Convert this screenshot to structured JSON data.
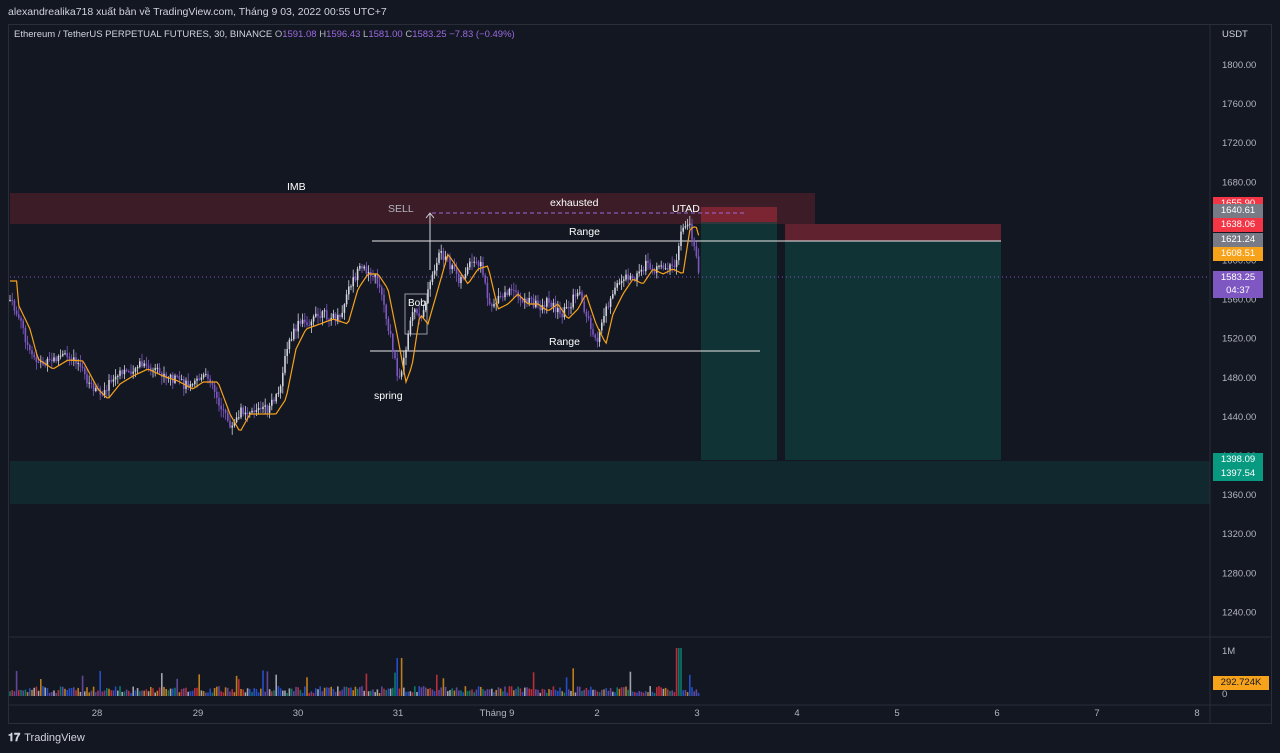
{
  "header": {
    "publisher_line": "alexandrealika718 xuất bản về TradingView.com, Tháng 9 03, 2022 00:55 UTC+7"
  },
  "legend": {
    "symbol": "Ethereum / TetherUS PERPETUAL FUTURES, 30, BINANCE",
    "o_label": "O",
    "o": "1591.08",
    "h_label": "H",
    "h": "1596.43",
    "l_label": "L",
    "l": "1581.00",
    "c_label": "C",
    "c": "1583.25",
    "change": "−7.83 (−0.49%)"
  },
  "price_axis": {
    "currency": "USDT",
    "ticks": [
      "1800.00",
      "1760.00",
      "1720.00",
      "1680.00",
      "1640.00",
      "1600.00",
      "1560.00",
      "1520.00",
      "1480.00",
      "1440.00",
      "1400.00",
      "1360.00",
      "1320.00",
      "1280.00",
      "1240.00"
    ],
    "tags": [
      {
        "label": "1655.90",
        "color": "#f23645"
      },
      {
        "label": "1640.61",
        "color": "#787b86"
      },
      {
        "label": "1638.06",
        "color": "#f23645"
      },
      {
        "label": "1621.24",
        "color": "#787b86"
      },
      {
        "label": "1608.51",
        "color": "#f7a21b"
      },
      {
        "label": "1583.25",
        "color": "#7e57c2"
      },
      {
        "label": "04:37",
        "color": "#7e57c2"
      },
      {
        "label": "1398.09",
        "color": "#089981"
      },
      {
        "label": "1397.54",
        "color": "#089981"
      }
    ]
  },
  "volume_axis": {
    "ticks": [
      "1M",
      "0"
    ],
    "current": "292.724K",
    "current_color": "#f7a21b"
  },
  "time_axis": [
    "28",
    "29",
    "30",
    "31",
    "Tháng 9",
    "2",
    "3",
    "4",
    "5",
    "6",
    "7",
    "8"
  ],
  "annotations": {
    "imb": "IMB",
    "sell": "SELL",
    "exhausted": "exhausted",
    "utad": "UTAD",
    "range_top": "Range",
    "range_bottom": "Range",
    "bob": "Bob",
    "spring": "spring"
  },
  "colors": {
    "up": "#d1d4dc",
    "down": "#7e57c2",
    "ma": "#f7a21b",
    "sell_zone": "#f23645",
    "target_zone": "#089981"
  },
  "footer": {
    "brand": "TradingView"
  }
}
